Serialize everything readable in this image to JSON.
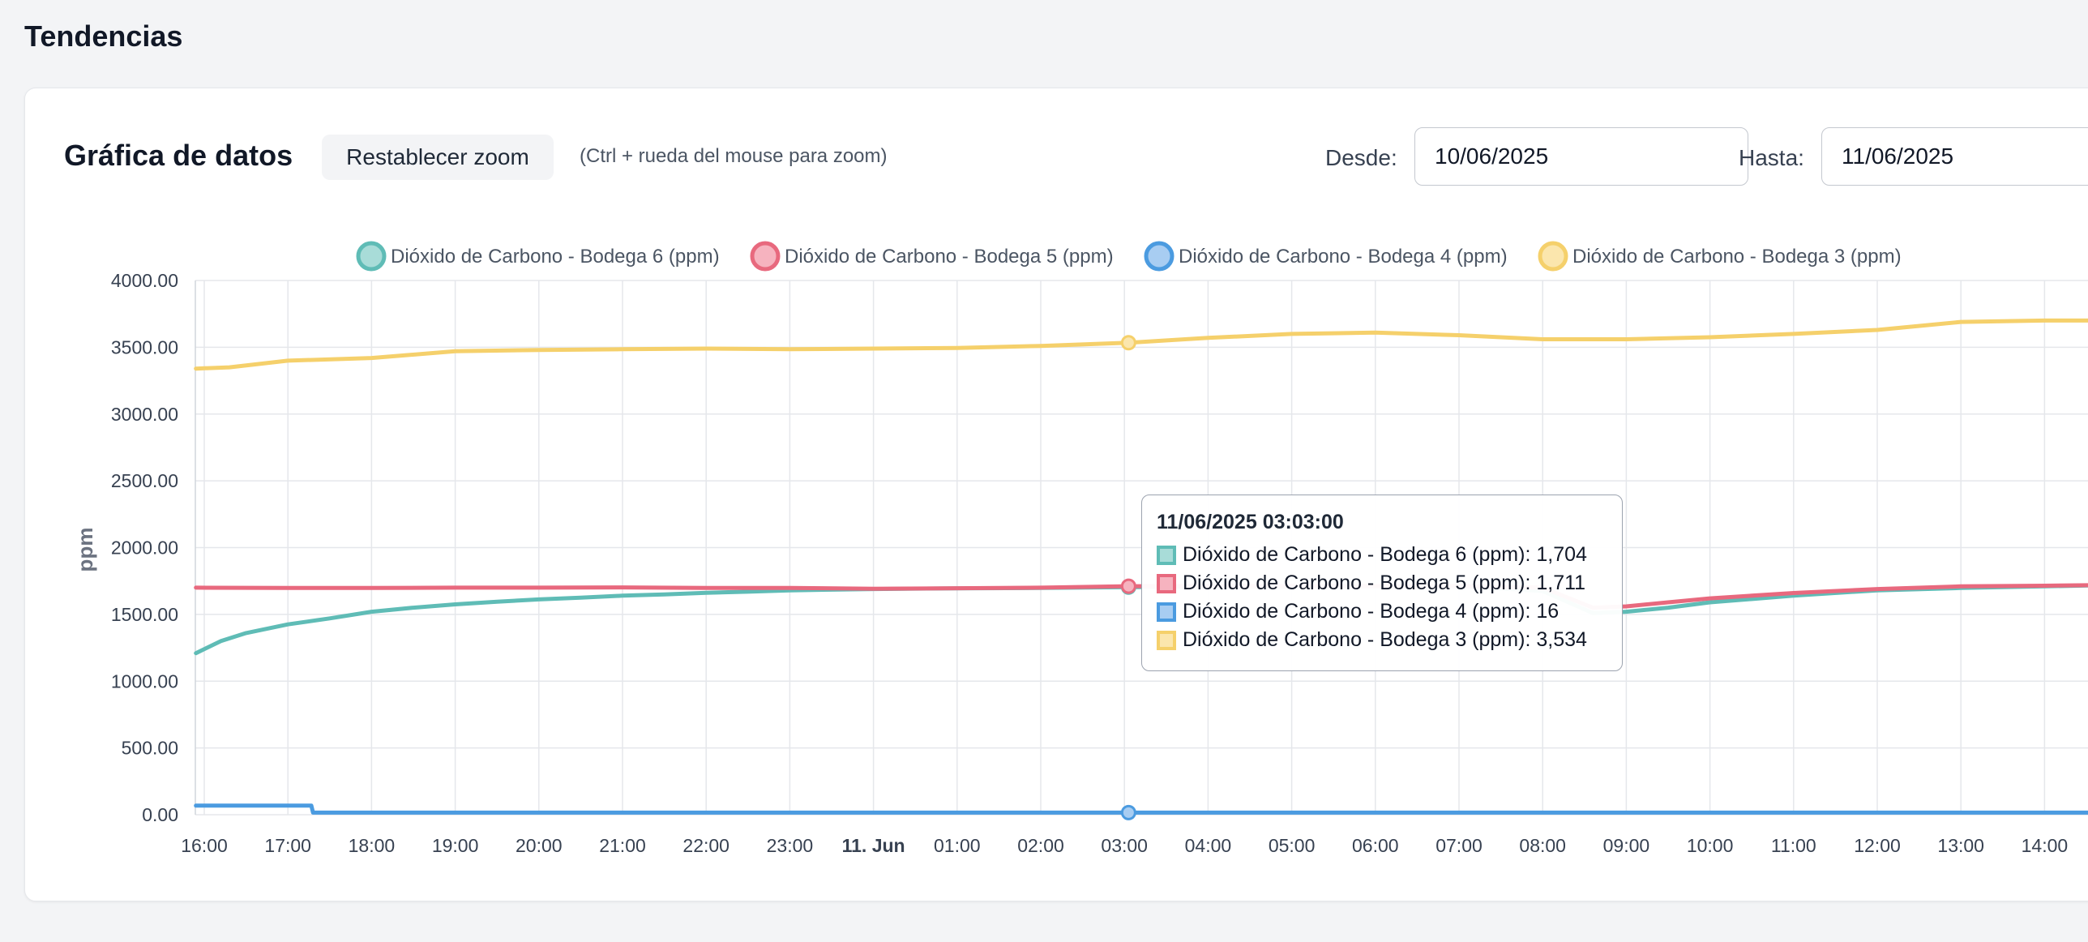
{
  "page": {
    "title": "Tendencias"
  },
  "header": {
    "title": "Gráfica de datos",
    "reset_zoom_label": "Restablecer zoom",
    "zoom_hint": "(Ctrl + rueda del mouse para zoom)",
    "from_label": "Desde:",
    "from_value": "10/06/2025",
    "to_label": "Hasta:",
    "to_value": "11/06/2025"
  },
  "tooltip": {
    "title": "11/06/2025 03:03:00",
    "rows": [
      {
        "label": "Dióxido de Carbono - Bodega 6 (ppm): 1,704"
      },
      {
        "label": "Dióxido de Carbono - Bodega 5 (ppm): 1,711"
      },
      {
        "label": "Dióxido de Carbono - Bodega 4 (ppm): 16"
      },
      {
        "label": "Dióxido de Carbono - Bodega 3 (ppm): 3,534"
      }
    ]
  },
  "chart_data": {
    "type": "line",
    "ylabel": "ppm",
    "ylim": [
      0,
      4000
    ],
    "yticks": [
      "0.00",
      "500.00",
      "1000.00",
      "1500.00",
      "2000.00",
      "2500.00",
      "3000.00",
      "3500.00",
      "4000.00"
    ],
    "xlim": [
      -0.1,
      22.8
    ],
    "xticks": [
      {
        "x": 0,
        "label": "16:00",
        "bold": false
      },
      {
        "x": 1,
        "label": "17:00",
        "bold": false
      },
      {
        "x": 2,
        "label": "18:00",
        "bold": false
      },
      {
        "x": 3,
        "label": "19:00",
        "bold": false
      },
      {
        "x": 4,
        "label": "20:00",
        "bold": false
      },
      {
        "x": 5,
        "label": "21:00",
        "bold": false
      },
      {
        "x": 6,
        "label": "22:00",
        "bold": false
      },
      {
        "x": 7,
        "label": "23:00",
        "bold": false
      },
      {
        "x": 8,
        "label": "11. Jun",
        "bold": true
      },
      {
        "x": 9,
        "label": "01:00",
        "bold": false
      },
      {
        "x": 10,
        "label": "02:00",
        "bold": false
      },
      {
        "x": 11,
        "label": "03:00",
        "bold": false
      },
      {
        "x": 12,
        "label": "04:00",
        "bold": false
      },
      {
        "x": 13,
        "label": "05:00",
        "bold": false
      },
      {
        "x": 14,
        "label": "06:00",
        "bold": false
      },
      {
        "x": 15,
        "label": "07:00",
        "bold": false
      },
      {
        "x": 16,
        "label": "08:00",
        "bold": false
      },
      {
        "x": 17,
        "label": "09:00",
        "bold": false
      },
      {
        "x": 18,
        "label": "10:00",
        "bold": false
      },
      {
        "x": 19,
        "label": "11:00",
        "bold": false
      },
      {
        "x": 20,
        "label": "12:00",
        "bold": false
      },
      {
        "x": 21,
        "label": "13:00",
        "bold": false
      },
      {
        "x": 22,
        "label": "14:00",
        "bold": false
      }
    ],
    "grid": true,
    "legend_position": "top",
    "hover_x": 11.05,
    "series": [
      {
        "name": "Dióxido de Carbono - Bodega 6 (ppm)",
        "color": "#5fbcb6",
        "fill": "#a8dcd8",
        "points": [
          [
            -0.1,
            1210
          ],
          [
            0.2,
            1300
          ],
          [
            0.5,
            1360
          ],
          [
            1,
            1425
          ],
          [
            1.5,
            1470
          ],
          [
            2,
            1520
          ],
          [
            2.5,
            1550
          ],
          [
            3,
            1575
          ],
          [
            3.5,
            1595
          ],
          [
            4,
            1612
          ],
          [
            4.5,
            1625
          ],
          [
            5,
            1640
          ],
          [
            5.5,
            1650
          ],
          [
            6,
            1662
          ],
          [
            6.5,
            1670
          ],
          [
            7,
            1680
          ],
          [
            7.5,
            1685
          ],
          [
            8,
            1690
          ],
          [
            9,
            1695
          ],
          [
            10,
            1698
          ],
          [
            11.05,
            1704
          ],
          [
            12,
            1706
          ],
          [
            13,
            1708
          ],
          [
            14,
            1712
          ],
          [
            15,
            1712
          ],
          [
            16,
            1675
          ],
          [
            16.6,
            1510
          ],
          [
            17,
            1520
          ],
          [
            17.5,
            1550
          ],
          [
            18,
            1590
          ],
          [
            19,
            1640
          ],
          [
            20,
            1680
          ],
          [
            21,
            1698
          ],
          [
            22,
            1710
          ],
          [
            22.8,
            1720
          ]
        ]
      },
      {
        "name": "Dióxido de Carbono - Bodega 5 (ppm)",
        "color": "#e8697e",
        "fill": "#f6b3bf",
        "points": [
          [
            -0.1,
            1700
          ],
          [
            1,
            1698
          ],
          [
            2,
            1698
          ],
          [
            3,
            1700
          ],
          [
            4,
            1700
          ],
          [
            5,
            1702
          ],
          [
            6,
            1698
          ],
          [
            7,
            1698
          ],
          [
            8,
            1692
          ],
          [
            9,
            1696
          ],
          [
            10,
            1700
          ],
          [
            11.05,
            1711
          ],
          [
            12,
            1712
          ],
          [
            13,
            1712
          ],
          [
            14,
            1712
          ],
          [
            15,
            1712
          ],
          [
            16,
            1700
          ],
          [
            16.6,
            1550
          ],
          [
            17,
            1560
          ],
          [
            17.5,
            1590
          ],
          [
            18,
            1620
          ],
          [
            19,
            1660
          ],
          [
            20,
            1690
          ],
          [
            21,
            1710
          ],
          [
            22,
            1715
          ],
          [
            22.8,
            1720
          ]
        ]
      },
      {
        "name": "Dióxido de Carbono - Bodega 4 (ppm)",
        "color": "#4b9be0",
        "fill": "#a8cdf2",
        "points": [
          [
            -0.1,
            68
          ],
          [
            1.28,
            68
          ],
          [
            1.3,
            16
          ],
          [
            22.8,
            16
          ]
        ]
      },
      {
        "name": "Dióxido de Carbono - Bodega 3 (ppm)",
        "color": "#f5d06b",
        "fill": "#fbe6ad",
        "points": [
          [
            -0.1,
            3340
          ],
          [
            0.3,
            3350
          ],
          [
            1,
            3400
          ],
          [
            2,
            3420
          ],
          [
            3,
            3470
          ],
          [
            4,
            3480
          ],
          [
            5,
            3485
          ],
          [
            6,
            3490
          ],
          [
            7,
            3485
          ],
          [
            8,
            3490
          ],
          [
            9,
            3495
          ],
          [
            10,
            3510
          ],
          [
            11.05,
            3534
          ],
          [
            12,
            3570
          ],
          [
            13,
            3600
          ],
          [
            14,
            3610
          ],
          [
            15,
            3590
          ],
          [
            16,
            3560
          ],
          [
            17,
            3560
          ],
          [
            18,
            3575
          ],
          [
            19,
            3600
          ],
          [
            20,
            3630
          ],
          [
            21,
            3690
          ],
          [
            22,
            3700
          ],
          [
            22.8,
            3700
          ]
        ]
      }
    ]
  }
}
